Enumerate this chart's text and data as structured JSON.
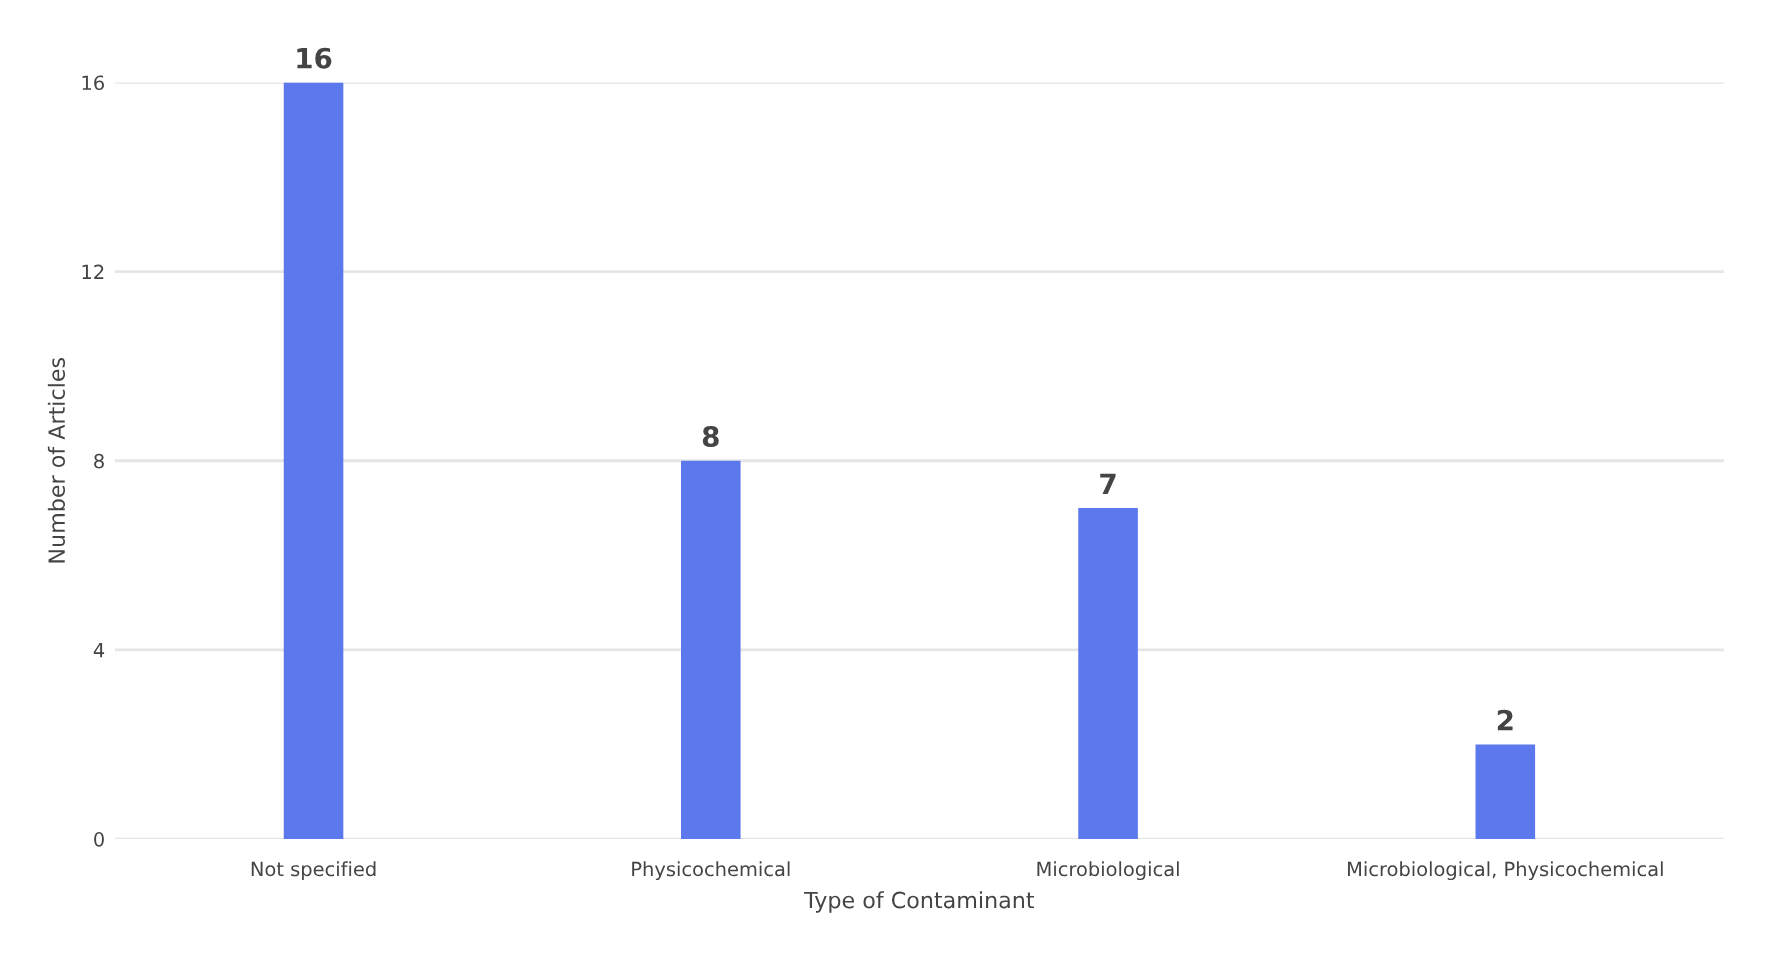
{
  "chart_data": {
    "type": "bar",
    "xlabel": "Type of Contaminant",
    "ylabel": "Number of Articles",
    "categories": [
      "Not specified",
      "Physicochemical",
      "Microbiological",
      "Microbiological, Physicochemical"
    ],
    "values": [
      16,
      8,
      7,
      2
    ],
    "color": "#5b78ec",
    "ylim": [
      0,
      16
    ],
    "yticks": [
      0,
      4,
      8,
      12,
      16
    ],
    "grid": "y",
    "data_labels": true
  }
}
